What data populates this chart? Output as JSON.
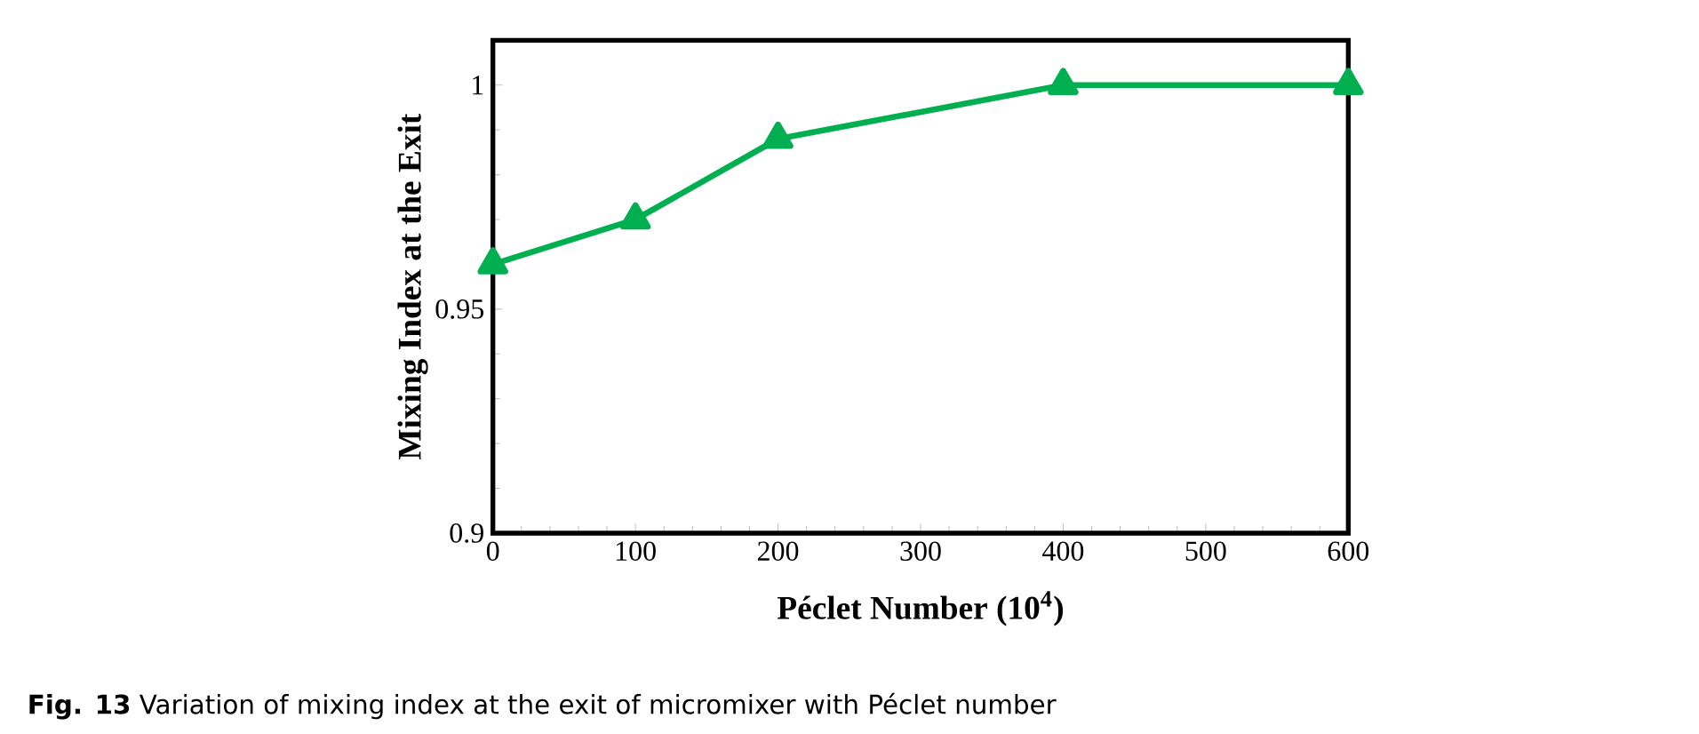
{
  "chart_data": {
    "type": "line",
    "xlabel": "Péclet Number (10$^{4}$)",
    "ylabel": "Mixing Index at the Exit",
    "x": [
      0,
      100,
      200,
      400,
      600
    ],
    "values": [
      0.96,
      0.97,
      0.988,
      1.0,
      1.0
    ],
    "color": "#00b050",
    "marker": "triangle",
    "xlim": [
      0,
      600
    ],
    "xticks": [
      0,
      100,
      200,
      300,
      400,
      500,
      600
    ],
    "ylim": [
      0.9,
      1.01
    ],
    "yticks": [
      0.9,
      0.95,
      1
    ],
    "annotations": [
      "**Fig. 13** Variation of mixing index at the exit of micromixer with Péclet number"
    ]
  }
}
